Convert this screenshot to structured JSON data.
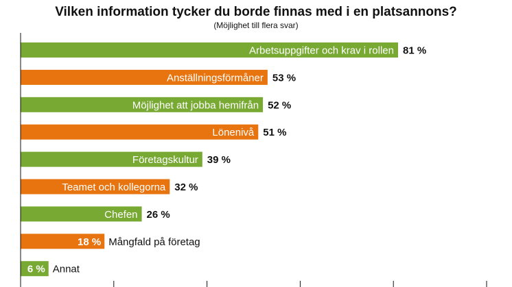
{
  "chart_data": {
    "type": "bar",
    "orientation": "horizontal",
    "title": "Vilken information tycker du borde finnas med i en platsannons?",
    "subtitle": "(Möjlighet till flera svar)",
    "xlim": [
      0,
      100
    ],
    "x_ticks": [
      0,
      20,
      40,
      60,
      80,
      100
    ],
    "value_suffix": " %",
    "colors": {
      "green": "#77a933",
      "orange": "#e8740f"
    },
    "categories": [
      "Arbetsuppgifter och krav i rollen",
      "Anställningsförmåner",
      "Möjlighet att jobba hemifrån",
      "Lönenivå",
      "Företagskultur",
      "Teamet och kollegorna",
      "Chefen",
      "Mångfald på företag",
      "Annat"
    ],
    "values": [
      81,
      53,
      52,
      51,
      39,
      32,
      26,
      18,
      6
    ],
    "value_labels": [
      "81 %",
      "53 %",
      "52 %",
      "51 %",
      "39 %",
      "32 %",
      "26 %",
      "18 %",
      "6 %"
    ],
    "bar_colors": [
      "green",
      "orange",
      "green",
      "orange",
      "green",
      "orange",
      "green",
      "orange",
      "green"
    ]
  }
}
